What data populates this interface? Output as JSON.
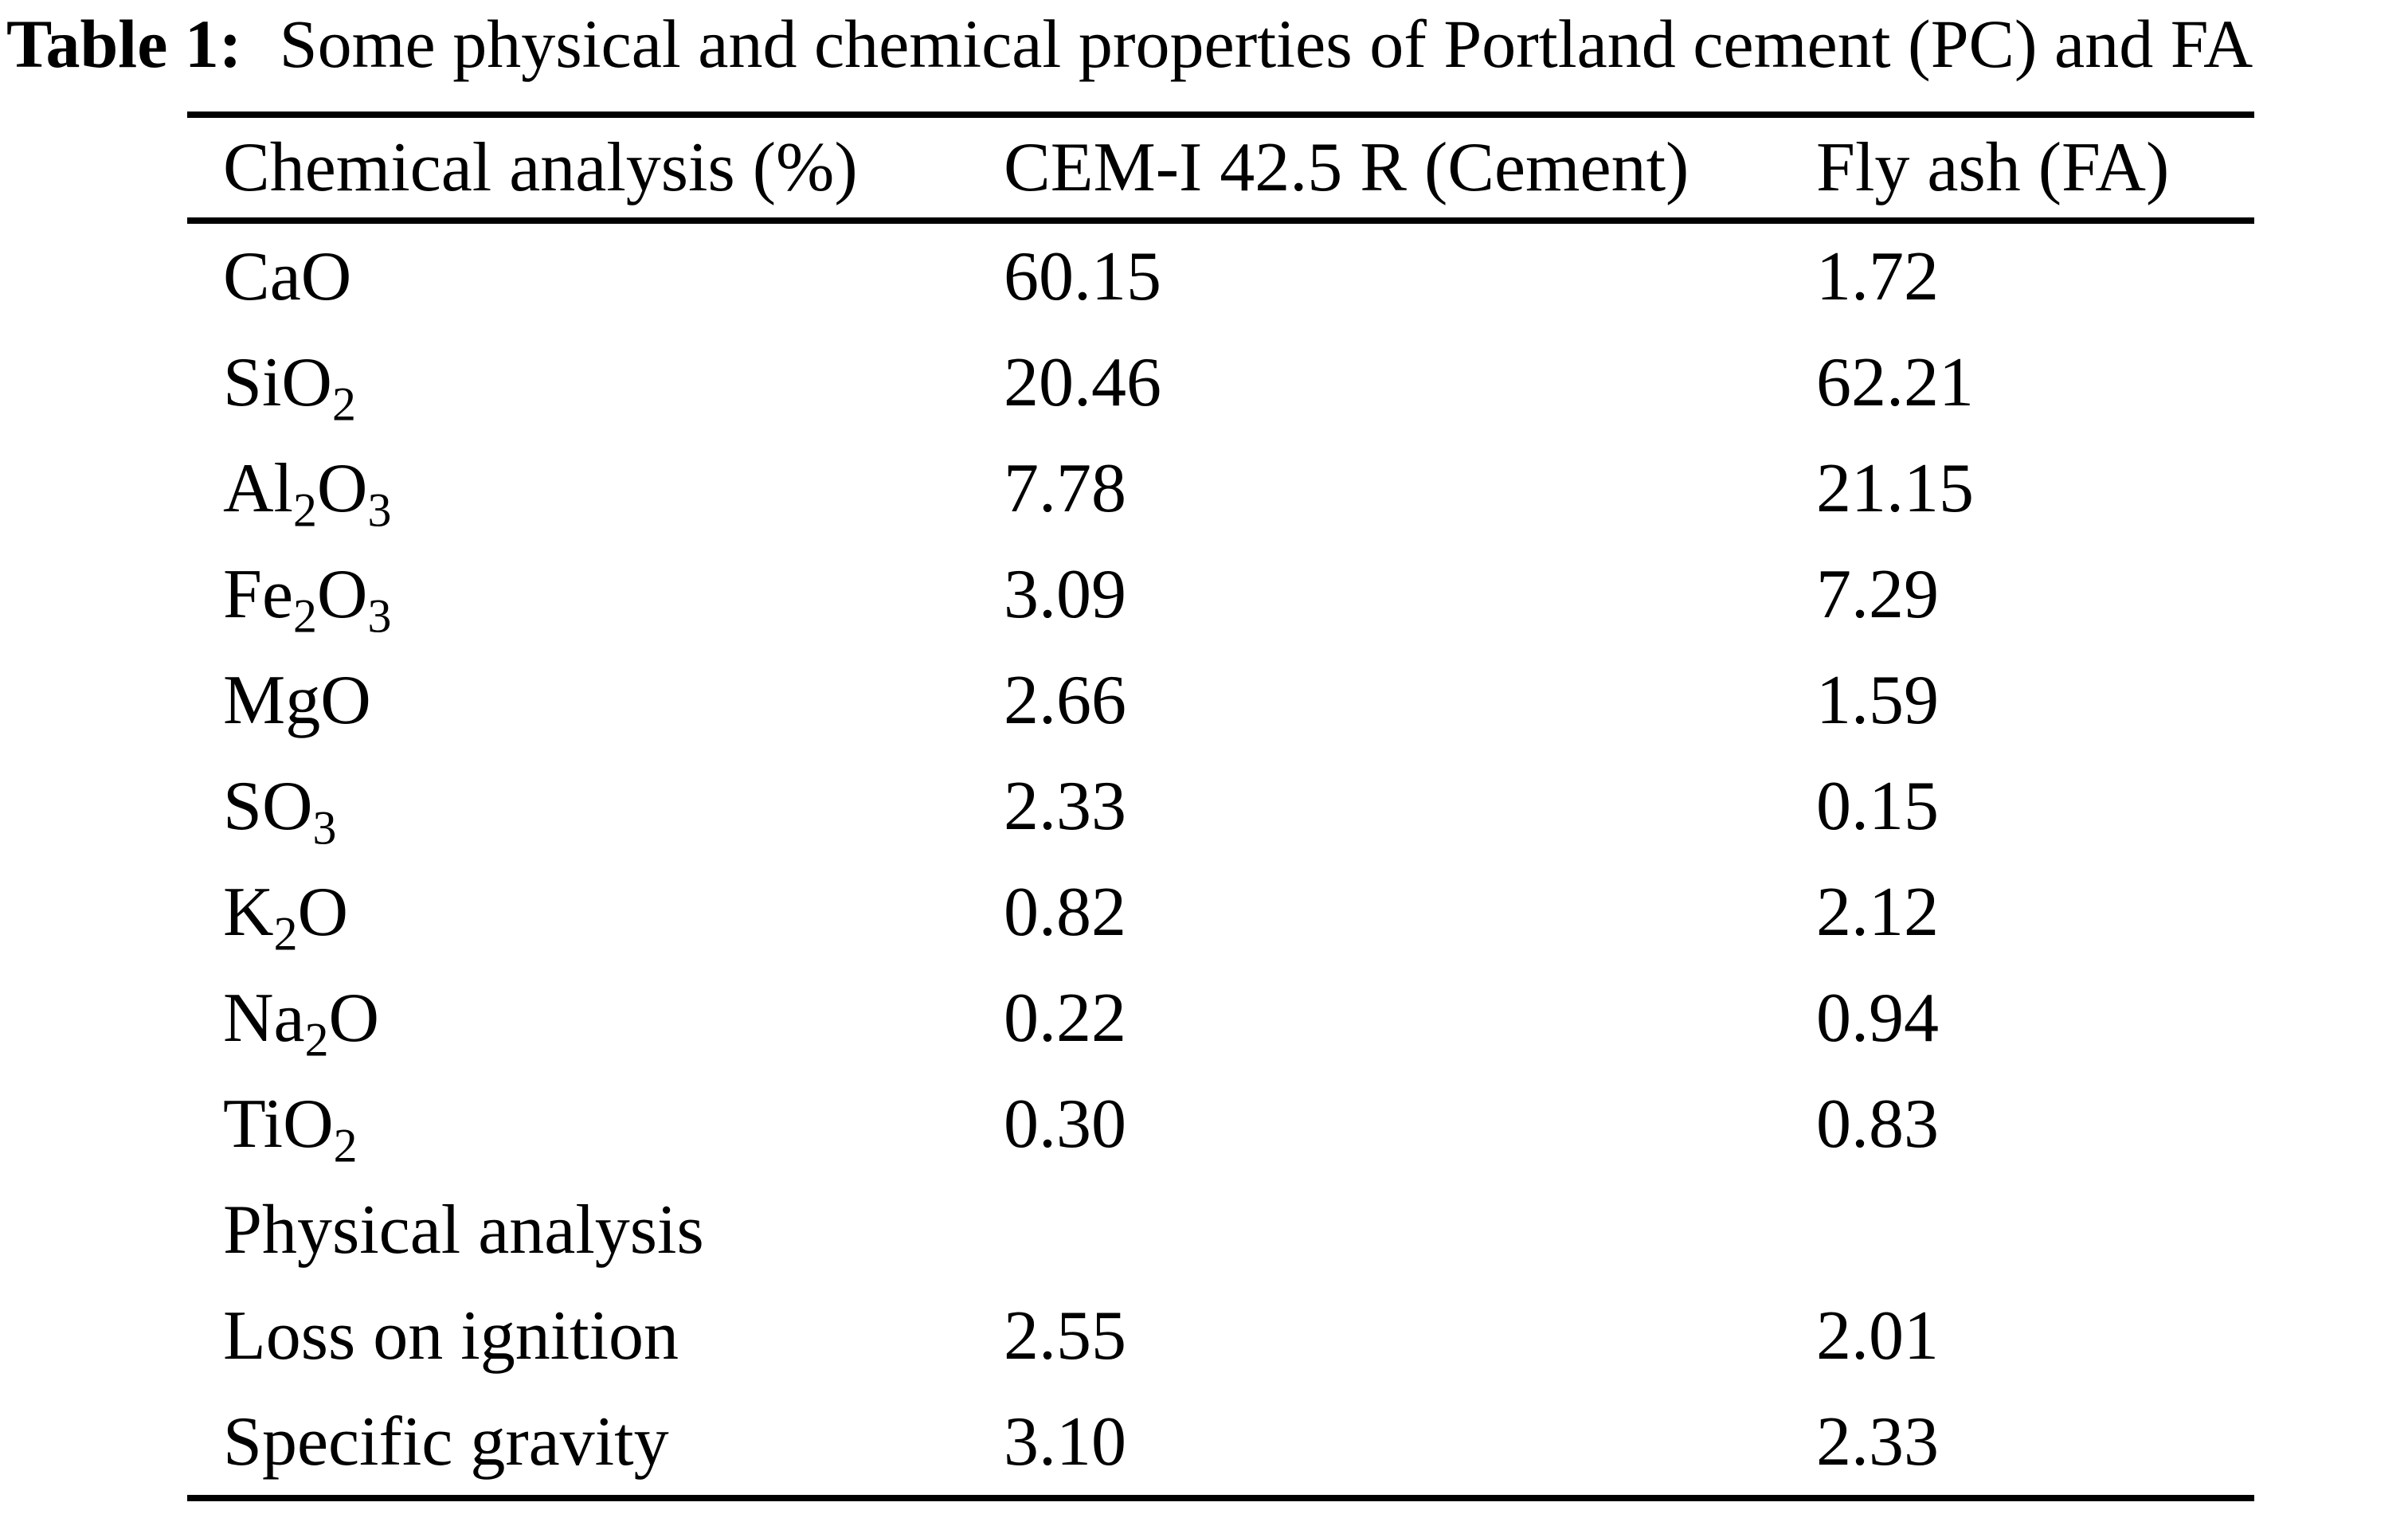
{
  "title": {
    "label": "Table 1:",
    "text": "Some physical and chemical properties of Portland cement (PC) and FA"
  },
  "colors": {
    "text": "#000000",
    "background": "#ffffff",
    "rule": "#000000"
  },
  "table": {
    "columns": [
      "Chemical analysis (%)",
      "CEM-I 42.5 R (Cement)",
      "Fly ash (FA)"
    ],
    "rows": [
      {
        "label": [
          [
            "CaO",
            false
          ]
        ],
        "cement": "60.15",
        "fa": "1.72"
      },
      {
        "label": [
          [
            "SiO",
            false
          ],
          [
            "2",
            true
          ]
        ],
        "cement": "20.46",
        "fa": "62.21"
      },
      {
        "label": [
          [
            "Al",
            false
          ],
          [
            "2",
            true
          ],
          [
            "O",
            false
          ],
          [
            "3",
            true
          ]
        ],
        "cement": "7.78",
        "fa": "21.15"
      },
      {
        "label": [
          [
            "Fe",
            false
          ],
          [
            "2",
            true
          ],
          [
            "O",
            false
          ],
          [
            "3",
            true
          ]
        ],
        "cement": "3.09",
        "fa": "7.29"
      },
      {
        "label": [
          [
            "MgO",
            false
          ]
        ],
        "cement": "2.66",
        "fa": "1.59"
      },
      {
        "label": [
          [
            "SO",
            false
          ],
          [
            "3",
            true
          ]
        ],
        "cement": "2.33",
        "fa": "0.15"
      },
      {
        "label": [
          [
            "K",
            false
          ],
          [
            "2",
            true
          ],
          [
            "O",
            false
          ]
        ],
        "cement": "0.82",
        "fa": "2.12"
      },
      {
        "label": [
          [
            "Na",
            false
          ],
          [
            "2",
            true
          ],
          [
            "O",
            false
          ]
        ],
        "cement": "0.22",
        "fa": "0.94"
      },
      {
        "label": [
          [
            "TiO",
            false
          ],
          [
            "2",
            true
          ]
        ],
        "cement": "0.30",
        "fa": "0.83"
      },
      {
        "label": [
          [
            "Physical analysis",
            false
          ]
        ],
        "cement": "",
        "fa": "",
        "section": true
      },
      {
        "label": [
          [
            "Loss on ignition",
            false
          ]
        ],
        "cement": "2.55",
        "fa": "2.01"
      },
      {
        "label": [
          [
            "Specific gravity",
            false
          ]
        ],
        "cement": "3.10",
        "fa": "2.33"
      }
    ]
  }
}
